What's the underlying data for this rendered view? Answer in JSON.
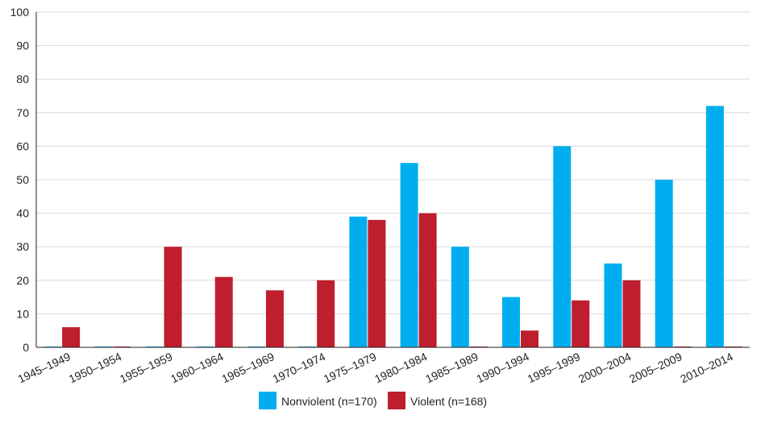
{
  "chart_data": {
    "type": "bar",
    "categories": [
      "1945–1949",
      "1950–1954",
      "1955–1959",
      "1960–1964",
      "1965–1969",
      "1970–1974",
      "1975–1979",
      "1980–1984",
      "1985–1989",
      "1990–1994",
      "1995–1999",
      "2000–2004",
      "2005–2009",
      "2010–2014"
    ],
    "series": [
      {
        "name": "Nonviolent (n=170)",
        "color": "#00aeef",
        "values": [
          0,
          0,
          0,
          0,
          0,
          0,
          39,
          55,
          30,
          15,
          60,
          25,
          50,
          72
        ]
      },
      {
        "name": "Violent (n=168)",
        "color": "#be1e2d",
        "values": [
          6,
          0,
          30,
          21,
          17,
          20,
          38,
          40,
          0,
          5,
          14,
          20,
          0,
          0
        ]
      }
    ],
    "yticks": [
      0,
      10,
      20,
      30,
      40,
      50,
      60,
      70,
      80,
      90,
      100
    ],
    "ylim": [
      0,
      100
    ],
    "legend_position": "bottom-center",
    "grid": true
  }
}
